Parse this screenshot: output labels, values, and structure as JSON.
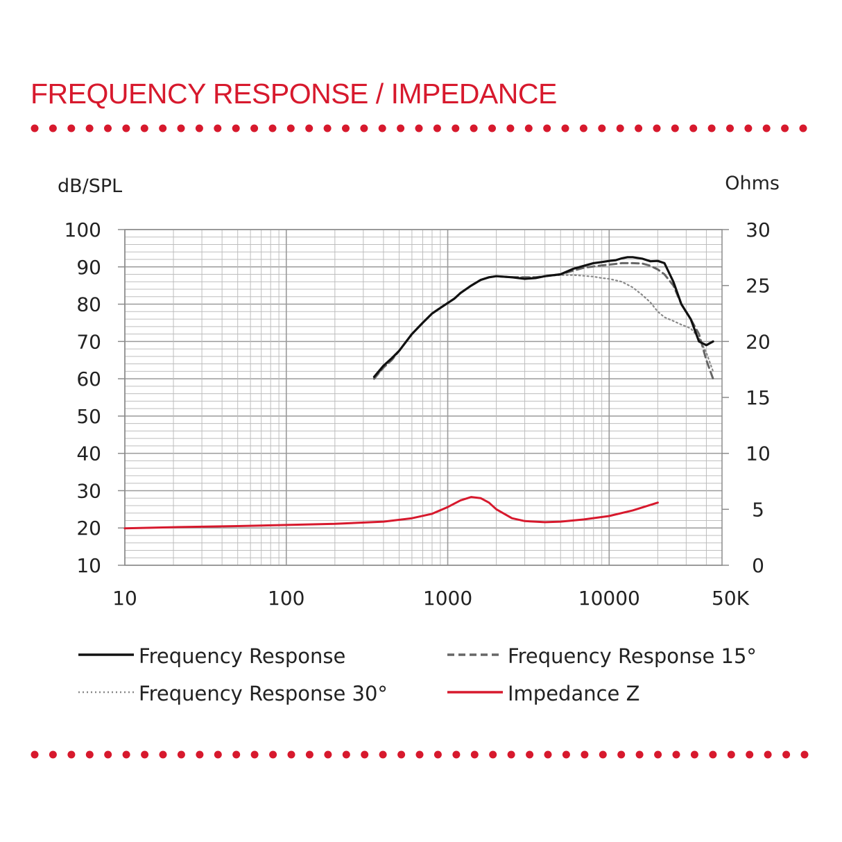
{
  "title": "FREQUENCY RESPONSE / IMPEDANCE",
  "colors": {
    "accent": "#d7192d",
    "grid": "#bdbdbd",
    "text": "#222222"
  },
  "chart_data": {
    "type": "line",
    "xscale": "log",
    "xlim": [
      10,
      50000
    ],
    "ylim": [
      10,
      100
    ],
    "ylim_right": [
      0,
      30
    ],
    "grid": true,
    "legend_position": "bottom",
    "ylabel": "dB/SPL",
    "ylabel_right": "Ohms",
    "xticks": [
      {
        "value": 10,
        "label": "10"
      },
      {
        "value": 100,
        "label": "100"
      },
      {
        "value": 1000,
        "label": "1000"
      },
      {
        "value": 10000,
        "label": "10000"
      },
      {
        "value": 50000,
        "label": "50K"
      }
    ],
    "yticks": [
      100,
      90,
      80,
      70,
      60,
      50,
      40,
      30,
      20,
      10
    ],
    "yticks_right": [
      30,
      25,
      20,
      15,
      10,
      5,
      0
    ],
    "series": [
      {
        "name": "Frequency Response",
        "axis": "left",
        "color": "#111111",
        "style": "solid",
        "x": [
          350,
          400,
          450,
          500,
          600,
          700,
          800,
          900,
          1000,
          1100,
          1200,
          1400,
          1600,
          1800,
          2000,
          2500,
          3000,
          3500,
          4000,
          5000,
          6000,
          7000,
          8000,
          9000,
          10000,
          11000,
          12000,
          13000,
          14000,
          16000,
          18000,
          20000,
          22000,
          25000,
          28000,
          32000,
          36000,
          40000,
          44000
        ],
        "y": [
          60.5,
          63.5,
          65.5,
          67.5,
          72,
          75,
          77.5,
          79,
          80.3,
          81.5,
          83,
          85,
          86.5,
          87.2,
          87.5,
          87.2,
          86.8,
          87,
          87.5,
          88,
          89.5,
          90.3,
          91,
          91.3,
          91.6,
          91.8,
          92.3,
          92.6,
          92.6,
          92.2,
          91.5,
          91.6,
          91,
          86,
          80,
          76,
          70,
          69,
          70
        ]
      },
      {
        "name": "Frequency Response 15°",
        "axis": "left",
        "color": "#666666",
        "style": "dashed",
        "x": [
          350,
          400,
          450,
          500,
          600,
          700,
          800,
          900,
          1000,
          1100,
          1200,
          1400,
          1600,
          1800,
          2000,
          2500,
          3000,
          3500,
          4000,
          5000,
          6000,
          7000,
          8000,
          9000,
          10000,
          12000,
          14000,
          16000,
          18000,
          20000,
          22000,
          25000,
          28000,
          32000,
          36000,
          40000,
          44000
        ],
        "y": [
          60,
          63,
          65,
          67.5,
          72,
          75,
          77.5,
          79,
          80.3,
          81.5,
          83,
          85,
          86.5,
          87.2,
          87.5,
          87.2,
          87.2,
          87.2,
          87.5,
          88,
          89,
          89.8,
          90.1,
          90.4,
          90.6,
          91,
          91,
          90.9,
          90.3,
          89.3,
          88,
          85,
          80,
          76,
          72,
          65,
          60
        ]
      },
      {
        "name": "Frequency Response 30°",
        "axis": "left",
        "color": "#888888",
        "style": "dotted",
        "x": [
          350,
          400,
          450,
          500,
          600,
          700,
          800,
          900,
          1000,
          1100,
          1200,
          1400,
          1600,
          1800,
          2000,
          2500,
          3000,
          3500,
          4000,
          5000,
          6000,
          7000,
          8000,
          9000,
          10000,
          12000,
          14000,
          16000,
          18000,
          20000,
          22000,
          25000,
          28000,
          32000,
          36000,
          40000,
          44000
        ],
        "y": [
          60,
          63,
          65,
          67.5,
          72,
          75,
          77.5,
          79,
          80.3,
          81.5,
          83,
          85,
          86.5,
          87.2,
          87.5,
          87.2,
          87.2,
          87.2,
          87.5,
          87.8,
          87.8,
          87.6,
          87.4,
          87,
          86.8,
          86,
          84.5,
          82.5,
          80.5,
          78,
          76.5,
          75.5,
          74.5,
          73.5,
          71,
          67,
          62
        ]
      },
      {
        "name": "Impedance Z",
        "axis": "right",
        "color": "#d7192d",
        "style": "solid",
        "x": [
          10,
          20,
          50,
          100,
          200,
          400,
          600,
          800,
          1000,
          1200,
          1400,
          1600,
          1800,
          2000,
          2500,
          3000,
          4000,
          5000,
          7000,
          10000,
          14000,
          20000
        ],
        "y": [
          3.3,
          3.4,
          3.5,
          3.6,
          3.7,
          3.9,
          4.2,
          4.6,
          5.2,
          5.8,
          6.1,
          6.0,
          5.6,
          5.0,
          4.2,
          3.95,
          3.85,
          3.9,
          4.1,
          4.4,
          4.9,
          5.6
        ]
      }
    ]
  }
}
